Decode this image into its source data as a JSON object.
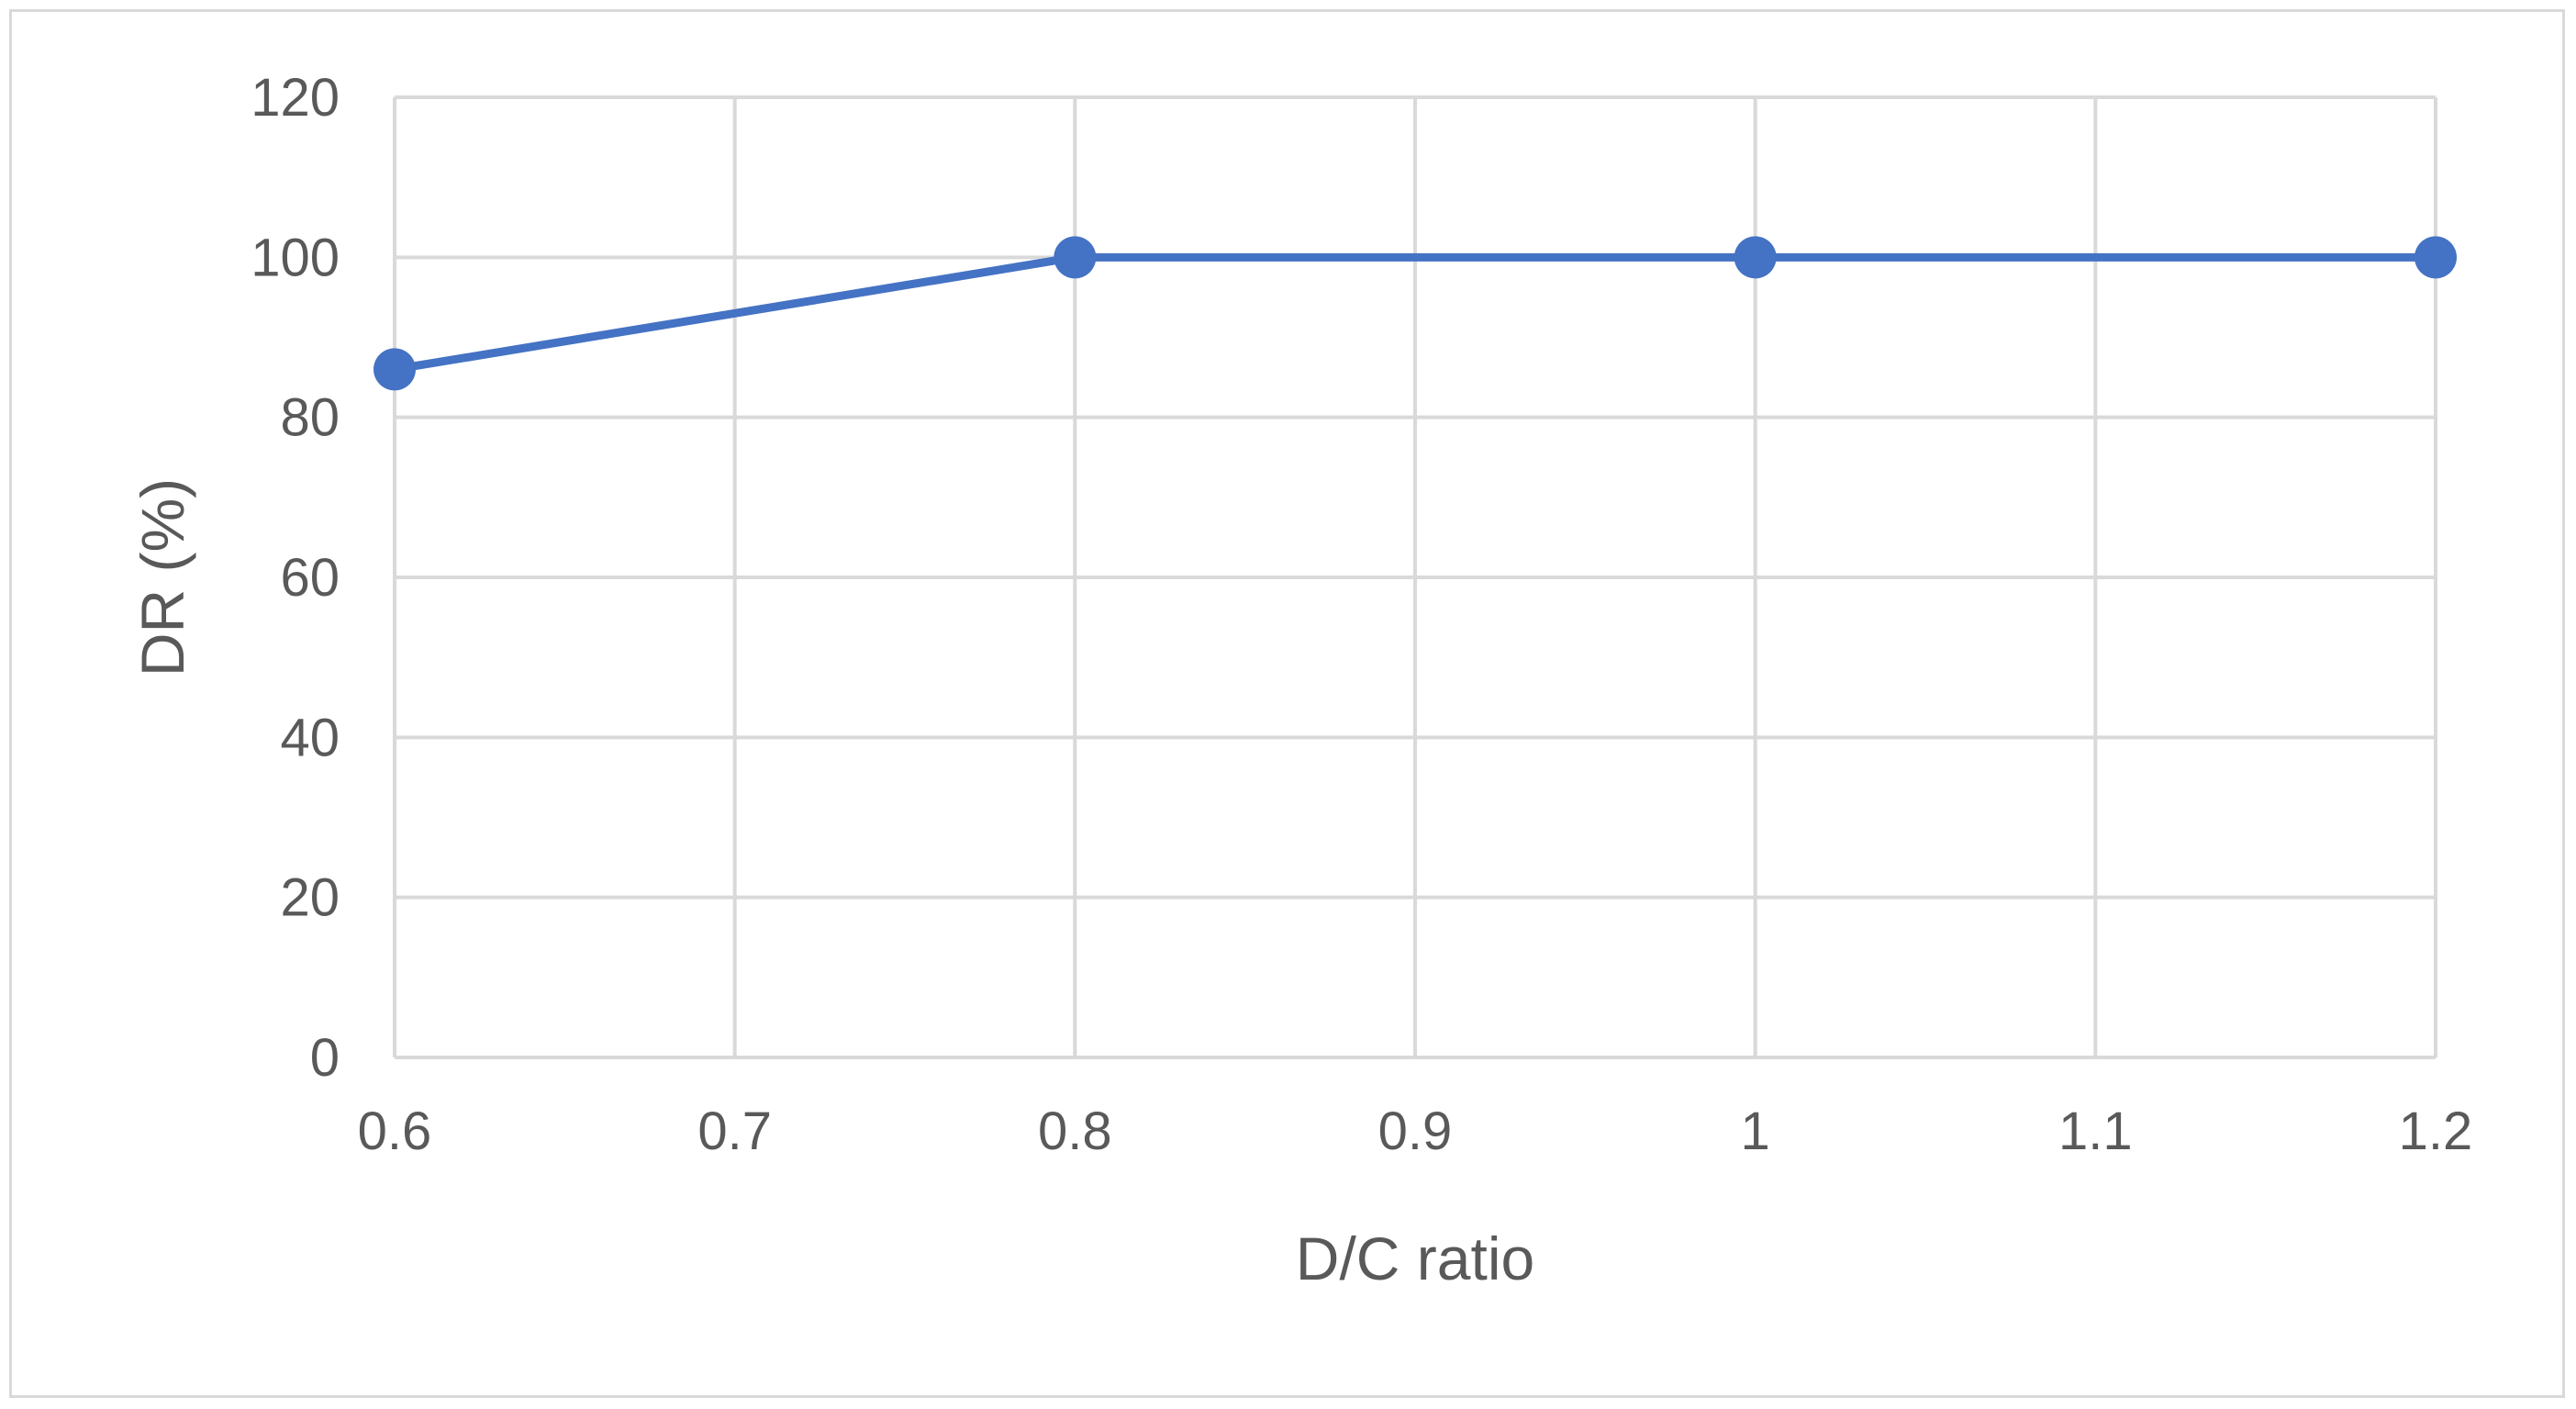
{
  "chart_data": {
    "type": "line",
    "title": "",
    "xlabel": "D/C ratio",
    "ylabel": "DR (%)",
    "x": [
      0.6,
      0.8,
      1.0,
      1.2
    ],
    "series": [
      {
        "values": [
          86,
          100,
          100,
          100
        ]
      }
    ],
    "xlim": [
      0.6,
      1.2
    ],
    "ylim": [
      0,
      120
    ],
    "xticks": [
      0.6,
      0.7,
      0.8,
      0.9,
      1.0,
      1.1,
      1.2
    ],
    "xtick_labels": [
      "0.6",
      "0.7",
      "0.8",
      "0.9",
      "1",
      "1.1",
      "1.2"
    ],
    "yticks": [
      0,
      20,
      40,
      60,
      80,
      100,
      120
    ],
    "ytick_labels": [
      "0",
      "20",
      "40",
      "60",
      "80",
      "100",
      "120"
    ],
    "grid": true,
    "legend": "none",
    "colors": {
      "series": "#4472c4",
      "grid": "#d9d9d9",
      "text": "#595959",
      "border": "#d9d9d9"
    }
  }
}
